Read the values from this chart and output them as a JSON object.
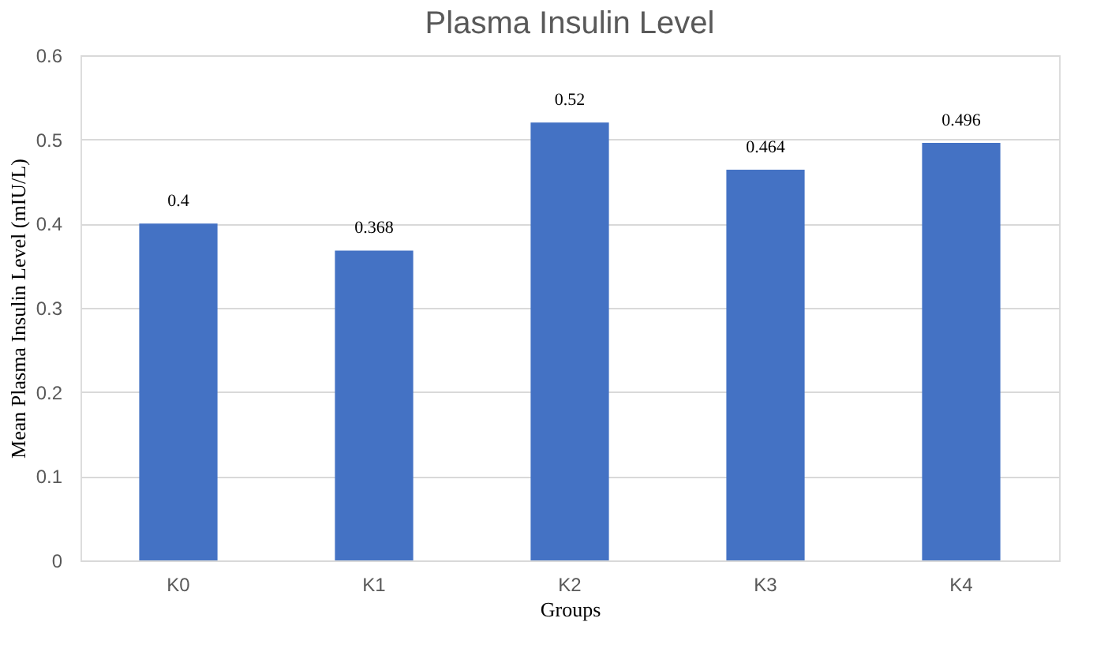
{
  "chart_data": {
    "type": "bar",
    "title": "Plasma Insulin Level",
    "xlabel": "Groups",
    "ylabel": "Mean Plasma Insulin Level (mIU/L)",
    "categories": [
      "K0",
      "K1",
      "K2",
      "K3",
      "K4"
    ],
    "values": [
      0.4,
      0.368,
      0.52,
      0.464,
      0.496
    ],
    "color": "#4472c4",
    "ylim": [
      0,
      0.6
    ],
    "yticks": [
      0,
      0.1,
      0.2,
      0.3,
      0.4,
      0.5,
      0.6
    ],
    "grid": "y",
    "data_labels": true
  }
}
